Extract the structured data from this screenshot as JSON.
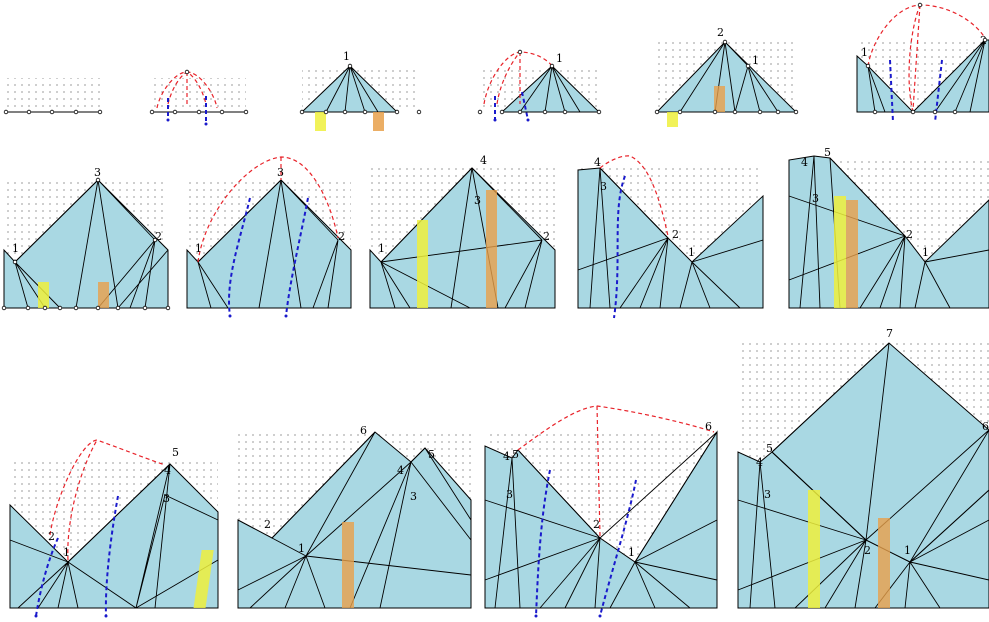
{
  "colors": {
    "fill": "#a9d8e3",
    "stroke": "#000000",
    "dot": "#555555",
    "red": "#e8232a",
    "blue": "#1a1acc",
    "yellow": "#eef03c",
    "orange": "#e8a04a"
  },
  "panels": [
    {
      "id": "p1",
      "labels": []
    },
    {
      "id": "p2",
      "labels": []
    },
    {
      "id": "p3",
      "labels": [
        "1"
      ]
    },
    {
      "id": "p4",
      "labels": [
        "1"
      ]
    },
    {
      "id": "p5",
      "labels": [
        "2",
        "1"
      ]
    },
    {
      "id": "p6",
      "labels": [
        "1",
        "2"
      ]
    },
    {
      "id": "p7",
      "labels": [
        "3",
        "1",
        "2"
      ]
    },
    {
      "id": "p8",
      "labels": [
        "3",
        "1",
        "2"
      ]
    },
    {
      "id": "p9",
      "labels": [
        "4",
        "3",
        "1",
        "2"
      ]
    },
    {
      "id": "p10",
      "labels": [
        "4",
        "3",
        "2",
        "1"
      ]
    },
    {
      "id": "p11",
      "labels": [
        "5",
        "4",
        "3",
        "2",
        "1"
      ]
    },
    {
      "id": "p12",
      "labels": [
        "5",
        "4",
        "3",
        "2",
        "1"
      ]
    },
    {
      "id": "p13",
      "labels": [
        "6",
        "4",
        "5",
        "3",
        "2",
        "1"
      ]
    },
    {
      "id": "p14",
      "labels": [
        "6",
        "4",
        "5",
        "3",
        "2",
        "1"
      ]
    },
    {
      "id": "p15",
      "labels": [
        "7",
        "6",
        "4",
        "5",
        "3",
        "2",
        "1"
      ]
    }
  ]
}
